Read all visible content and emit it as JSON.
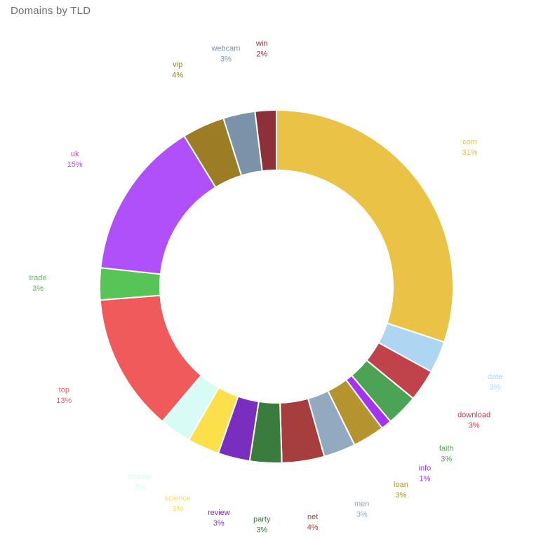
{
  "page": {
    "background_color": "#ffffff",
    "title_color": "#6e6e6e"
  },
  "chart_data": {
    "type": "pie",
    "subtype": "donut",
    "title": "Domains by TLD",
    "legend_position": "none",
    "labels_position": "outside",
    "label_format": "name + percent, text colored same as slice",
    "start_angle": "top",
    "direction": "clockwise",
    "segments": [
      {
        "label": "com",
        "percent": 31,
        "percent_label": "31%",
        "color": "#EAC246"
      },
      {
        "label": "date",
        "percent": 3,
        "percent_label": "3%",
        "color": "#AED6F2"
      },
      {
        "label": "download",
        "percent": 3,
        "percent_label": "3%",
        "color": "#C0434C"
      },
      {
        "label": "faith",
        "percent": 3,
        "percent_label": "3%",
        "color": "#4CA356"
      },
      {
        "label": "info",
        "percent": 1,
        "percent_label": "1%",
        "color": "#A335F2"
      },
      {
        "label": "loan",
        "percent": 3,
        "percent_label": "3%",
        "color": "#B5932F"
      },
      {
        "label": "men",
        "percent": 3,
        "percent_label": "3%",
        "color": "#92A9C0"
      },
      {
        "label": "net",
        "percent": 4,
        "percent_label": "4%",
        "color": "#A63E3E"
      },
      {
        "label": "party",
        "percent": 3,
        "percent_label": "3%",
        "color": "#3A7B3E"
      },
      {
        "label": "review",
        "percent": 3,
        "percent_label": "3%",
        "color": "#7A2EC0"
      },
      {
        "label": "science",
        "percent": 3,
        "percent_label": "3%",
        "color": "#FBE04B"
      },
      {
        "label": "stream",
        "percent": 3,
        "percent_label": "3%",
        "color": "#D8FBF5"
      },
      {
        "label": "top",
        "percent": 13,
        "percent_label": "13%",
        "color": "#F15A5A"
      },
      {
        "label": "trade",
        "percent": 3,
        "percent_label": "3%",
        "color": "#57C457"
      },
      {
        "label": "uk",
        "percent": 15,
        "percent_label": "15%",
        "color": "#B050FA"
      },
      {
        "label": "vip",
        "percent": 4,
        "percent_label": "4%",
        "color": "#9A7D25"
      },
      {
        "label": "webcam",
        "percent": 3,
        "percent_label": "3%",
        "color": "#7A93A9"
      },
      {
        "label": "win",
        "percent": 2,
        "percent_label": "2%",
        "color": "#8D3038"
      }
    ]
  }
}
